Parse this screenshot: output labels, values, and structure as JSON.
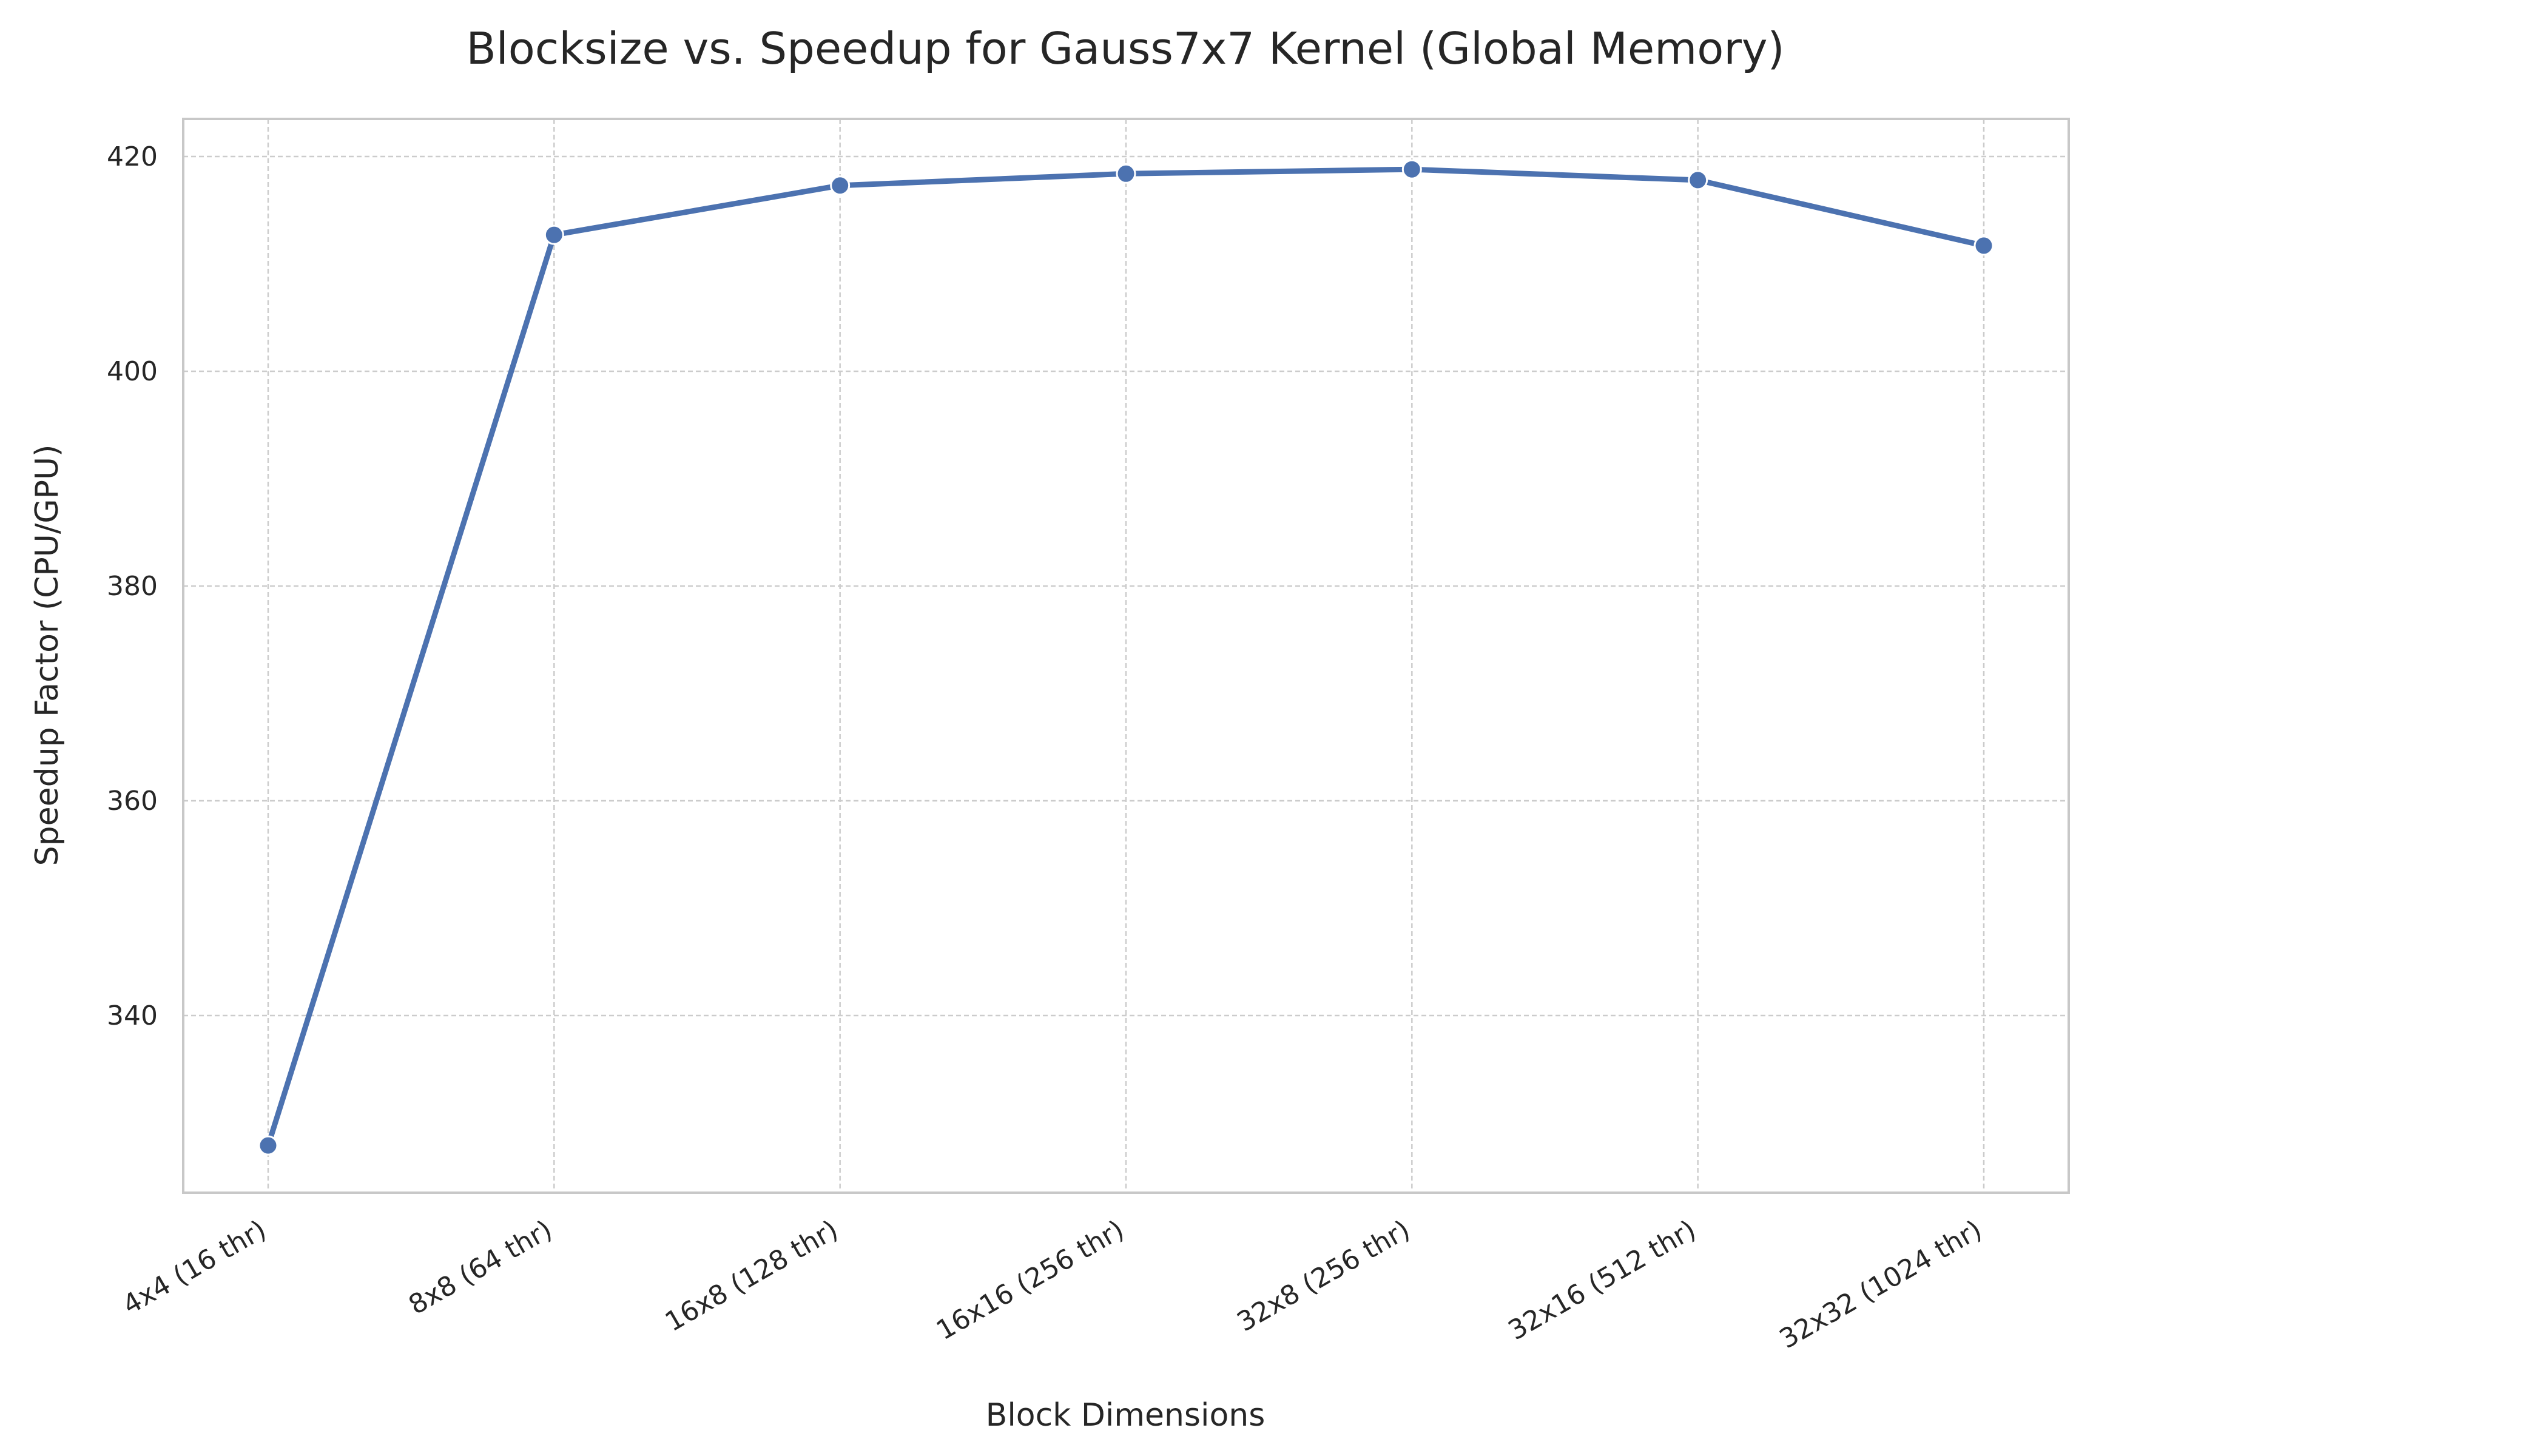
{
  "chart_data": {
    "type": "line",
    "title": "Blocksize vs. Speedup for Gauss7x7 Kernel (Global Memory)",
    "xlabel": "Block Dimensions",
    "ylabel": "Speedup Factor (CPU/GPU)",
    "categories": [
      "4x4 (16 thr)",
      "8x8 (64 thr)",
      "16x8 (128 thr)",
      "16x16 (256 thr)",
      "32x8 (256 thr)",
      "32x16 (512 thr)",
      "32x32 (1024 thr)"
    ],
    "series": [
      {
        "name": "Speedup",
        "values": [
          327.9,
          412.7,
          417.3,
          418.4,
          418.8,
          417.8,
          411.7
        ]
      }
    ],
    "yticks": [
      340,
      360,
      380,
      400,
      420
    ],
    "ylim": [
      323.5,
      423.5
    ],
    "grid": true,
    "line_color": "#4c72b0",
    "grid_color": "#cccccc",
    "frame_color": "#c8c8c8"
  }
}
